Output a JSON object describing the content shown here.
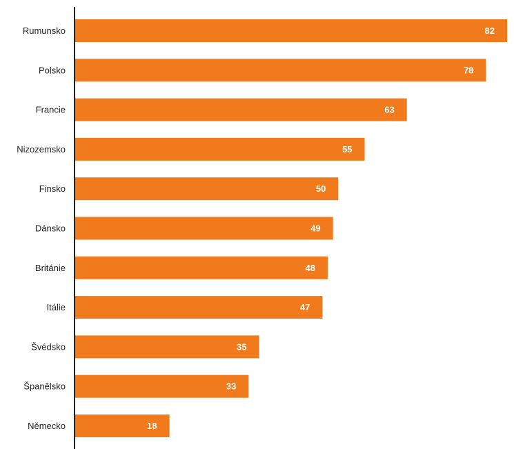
{
  "chart_data": {
    "type": "bar",
    "orientation": "horizontal",
    "categories": [
      "Rumunsko",
      "Polsko",
      "Francie",
      "Nizozemsko",
      "Finsko",
      "Dánsko",
      "Británie",
      "Itálie",
      "Švédsko",
      "Španělsko",
      "Německo"
    ],
    "values": [
      82,
      78,
      63,
      55,
      50,
      49,
      48,
      47,
      35,
      33,
      18
    ],
    "value_labels": [
      "82",
      "78",
      "63",
      "55",
      "50",
      "49",
      "48",
      "47",
      "35",
      "33",
      "18"
    ],
    "title": "",
    "xlabel": "",
    "ylabel": "",
    "xlim": [
      0,
      82
    ],
    "grid": false,
    "legend": "none",
    "bar_color": "#F07A1C",
    "axis_color": "#222222"
  }
}
